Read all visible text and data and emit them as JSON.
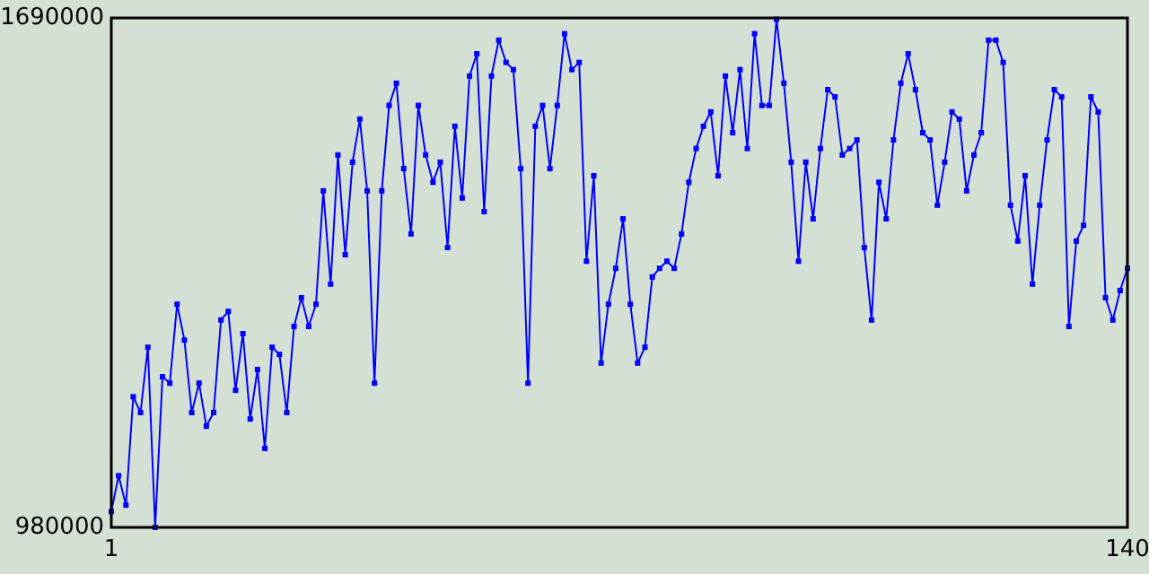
{
  "chart_data": {
    "type": "line",
    "x": [
      1,
      2,
      3,
      4,
      5,
      6,
      7,
      8,
      9,
      10,
      11,
      12,
      13,
      14,
      15,
      16,
      17,
      18,
      19,
      20,
      21,
      22,
      23,
      24,
      25,
      26,
      27,
      28,
      29,
      30,
      31,
      32,
      33,
      34,
      35,
      36,
      37,
      38,
      39,
      40,
      41,
      42,
      43,
      44,
      45,
      46,
      47,
      48,
      49,
      50,
      51,
      52,
      53,
      54,
      55,
      56,
      57,
      58,
      59,
      60,
      61,
      62,
      63,
      64,
      65,
      66,
      67,
      68,
      69,
      70,
      71,
      72,
      73,
      74,
      75,
      76,
      77,
      78,
      79,
      80,
      81,
      82,
      83,
      84,
      85,
      86,
      87,
      88,
      89,
      90,
      91,
      92,
      93,
      94,
      95,
      96,
      97,
      98,
      99,
      100,
      101,
      102,
      103,
      104,
      105,
      106,
      107,
      108,
      109,
      110,
      111,
      112,
      113,
      114,
      115,
      116,
      117,
      118,
      119,
      120,
      121,
      122,
      123,
      124,
      125,
      126,
      127,
      128,
      129,
      130,
      131,
      132,
      133,
      134,
      135,
      136,
      137,
      138,
      139,
      140
    ],
    "series": [
      {
        "color": "#0000ff",
        "values": [
          1002000,
          1052000,
          1011000,
          1162000,
          1140000,
          1231000,
          980000,
          1190000,
          1181000,
          1291000,
          1241000,
          1140000,
          1181000,
          1121000,
          1140000,
          1269000,
          1281000,
          1171000,
          1250000,
          1131000,
          1200000,
          1090000,
          1231000,
          1221000,
          1140000,
          1260000,
          1300000,
          1260000,
          1291000,
          1449000,
          1319000,
          1499000,
          1360000,
          1489000,
          1549000,
          1449000,
          1181000,
          1449000,
          1568000,
          1599000,
          1480000,
          1389000,
          1568000,
          1499000,
          1461000,
          1489000,
          1370000,
          1539000,
          1439000,
          1609000,
          1640000,
          1420000,
          1609000,
          1659000,
          1628000,
          1618000,
          1480000,
          1181000,
          1539000,
          1568000,
          1480000,
          1568000,
          1668000,
          1618000,
          1628000,
          1351000,
          1470000,
          1209000,
          1291000,
          1341000,
          1410000,
          1291000,
          1209000,
          1231000,
          1329000,
          1341000,
          1351000,
          1341000,
          1389000,
          1461000,
          1508000,
          1539000,
          1559000,
          1470000,
          1609000,
          1530000,
          1618000,
          1508000,
          1668000,
          1568000,
          1568000,
          1688000,
          1599000,
          1489000,
          1351000,
          1489000,
          1410000,
          1508000,
          1590000,
          1580000,
          1499000,
          1508000,
          1520000,
          1370000,
          1269000,
          1461000,
          1410000,
          1520000,
          1599000,
          1640000,
          1590000,
          1530000,
          1520000,
          1429000,
          1489000,
          1559000,
          1549000,
          1449000,
          1499000,
          1530000,
          1659000,
          1659000,
          1628000,
          1429000,
          1379000,
          1470000,
          1319000,
          1429000,
          1520000,
          1590000,
          1580000,
          1260000,
          1379000,
          1401000,
          1580000,
          1559000,
          1300000,
          1269000,
          1310000,
          1341000
        ]
      }
    ],
    "xlim": [
      1,
      140
    ],
    "xticks": [
      1,
      140
    ],
    "ylim": [
      980000,
      1690000
    ],
    "yticks": [
      980000,
      1690000
    ],
    "marker": "square",
    "line_style": "solid"
  }
}
